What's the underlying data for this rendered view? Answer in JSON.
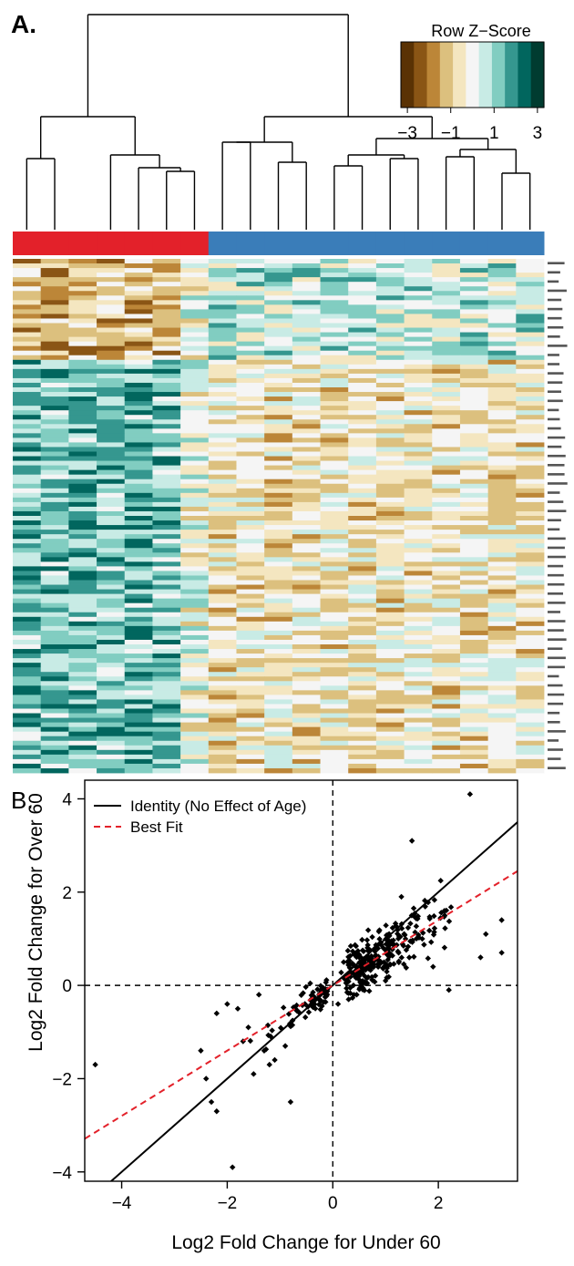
{
  "panel_a": {
    "label": "A.",
    "key_title": "Row Z−Score",
    "key_colors": [
      "#5a3204",
      "#8a5515",
      "#bc8638",
      "#dcc07e",
      "#f4e6c0",
      "#f5f5f5",
      "#c8ebe5",
      "#81cdc1",
      "#35978f",
      "#01665e",
      "#003c30"
    ],
    "key_ticks": [
      {
        "value": -3,
        "label": "−3"
      },
      {
        "value": -1,
        "label": "−1"
      },
      {
        "value": 1,
        "label": "1"
      },
      {
        "value": 3,
        "label": "3"
      }
    ],
    "group_colors": {
      "over60": "#e3212a",
      "under60": "#3a7db9"
    },
    "sample_groups": [
      "over60",
      "over60",
      "over60",
      "over60",
      "over60",
      "over60",
      "over60",
      "under60",
      "under60",
      "under60",
      "under60",
      "under60",
      "under60",
      "under60",
      "under60",
      "under60",
      "under60",
      "under60",
      "under60"
    ]
  },
  "chart_data": {
    "panel_label": "B.",
    "type": "scatter",
    "xlabel": "Log2 Fold Change for Under 60",
    "ylabel": "Log2 Fold Change for Over 60",
    "xlim": [
      -4.7,
      3.5
    ],
    "ylim": [
      -4.2,
      4.4
    ],
    "xticks": [
      -4,
      -2,
      0,
      2
    ],
    "yticks": [
      -4,
      -2,
      0,
      2,
      4
    ],
    "legend_position": "top-left",
    "lines": [
      {
        "name": "Identity (No Effect of Age)",
        "color": "#000000",
        "style": "solid",
        "slope": 1.0,
        "intercept": 0.0
      },
      {
        "name": "Best Fit",
        "color": "#e3212a",
        "style": "dashed",
        "slope": 0.7,
        "intercept": 0.0
      }
    ],
    "reference_lines": [
      {
        "axis": "x",
        "value": 0
      },
      {
        "axis": "y",
        "value": 0
      }
    ],
    "outliers": [
      [
        -4.5,
        -1.7
      ],
      [
        -2.5,
        -1.4
      ],
      [
        -2.3,
        -2.5
      ],
      [
        -2.2,
        -2.7
      ],
      [
        -1.9,
        -3.9
      ],
      [
        -2.4,
        -2.0
      ],
      [
        -1.6,
        -0.9
      ],
      [
        -1.7,
        -1.2
      ],
      [
        -1.5,
        -1.9
      ],
      [
        -1.3,
        -1.4
      ],
      [
        -1.2,
        -1.7
      ],
      [
        -1.1,
        -1.6
      ],
      [
        -0.9,
        -1.3
      ],
      [
        -0.8,
        -2.5
      ],
      [
        -2.2,
        -0.6
      ],
      [
        -2.0,
        -0.4
      ],
      [
        -1.8,
        -0.5
      ],
      [
        -1.4,
        -0.2
      ],
      [
        0.1,
        -0.4
      ],
      [
        0.3,
        -0.3
      ],
      [
        0.5,
        0.2
      ],
      [
        1.5,
        3.1
      ],
      [
        1.3,
        1.9
      ],
      [
        2.6,
        4.1
      ],
      [
        2.9,
        1.1
      ],
      [
        3.2,
        1.4
      ],
      [
        3.2,
        0.7
      ],
      [
        2.2,
        -0.1
      ],
      [
        1.9,
        0.4
      ],
      [
        2.8,
        0.6
      ],
      [
        0.4,
        -0.2
      ],
      [
        1.0,
        0.1
      ]
    ]
  }
}
